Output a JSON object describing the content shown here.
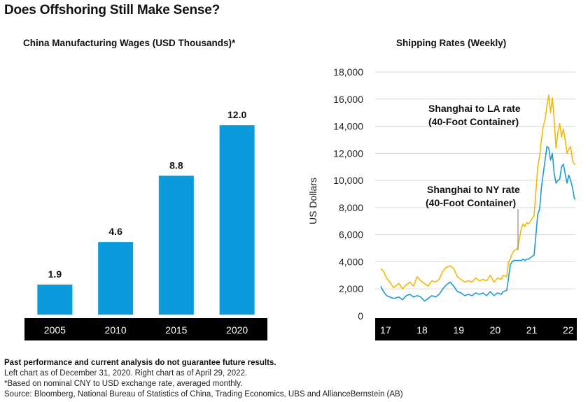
{
  "title": "Does Offshoring Still Make Sense?",
  "colors": {
    "bar": "#0b9bdc",
    "la": "#f5b800",
    "ny": "#1a9bd7",
    "axis_band": "#000000"
  },
  "chart_data": [
    {
      "type": "bar",
      "title": "China Manufacturing Wages (USD Thousands)*",
      "categories": [
        "2005",
        "2010",
        "2015",
        "2020"
      ],
      "values": [
        1.9,
        4.6,
        8.8,
        12.0
      ],
      "value_labels": [
        "1.9",
        "4.6",
        "8.8",
        "12.0"
      ],
      "ylim": [
        0,
        13.6
      ],
      "grid": false
    },
    {
      "type": "line",
      "title": "Shipping Rates (Weekly)",
      "ylabel": "US Dollars",
      "xlim": [
        2016.85,
        2022.33
      ],
      "ylim": [
        0,
        18000
      ],
      "x_ticks": [
        2017,
        2018,
        2019,
        2020,
        2021,
        2022
      ],
      "x_tick_labels": [
        "17",
        "18",
        "19",
        "20",
        "21",
        "22"
      ],
      "y_ticks": [
        0,
        2000,
        4000,
        6000,
        8000,
        10000,
        12000,
        14000,
        16000,
        18000
      ],
      "y_tick_labels": [
        "0",
        "2,000",
        "4,000",
        "6,000",
        "8,000",
        "10,000",
        "12,000",
        "14,000",
        "16,000",
        "18,000"
      ],
      "grid": true,
      "series": [
        {
          "name": "Shanghai to LA rate (40-Foot Container)",
          "label_lines": [
            "Shanghai to LA rate",
            "(40-Foot Container)"
          ],
          "x": [
            2017.0,
            2017.08,
            2017.16,
            2017.25,
            2017.35,
            2017.5,
            2017.6,
            2017.7,
            2017.8,
            2017.9,
            2018.0,
            2018.1,
            2018.2,
            2018.3,
            2018.4,
            2018.5,
            2018.6,
            2018.7,
            2018.8,
            2018.9,
            2019.0,
            2019.1,
            2019.2,
            2019.3,
            2019.4,
            2019.5,
            2019.6,
            2019.7,
            2019.8,
            2019.9,
            2020.0,
            2020.1,
            2020.2,
            2020.3,
            2020.35,
            2020.45,
            2020.5,
            2020.55,
            2020.6,
            2020.65,
            2020.7,
            2020.75,
            2020.85,
            2020.9,
            2020.95,
            2021.0,
            2021.05,
            2021.1,
            2021.2,
            2021.3,
            2021.35,
            2021.4,
            2021.45,
            2021.5,
            2021.55,
            2021.6,
            2021.65,
            2021.7,
            2021.75,
            2021.8,
            2021.85,
            2021.9,
            2021.95,
            2022.0,
            2022.05,
            2022.1,
            2022.15,
            2022.2,
            2022.25,
            2022.3,
            2022.33
          ],
          "y": [
            3500,
            3300,
            2800,
            2500,
            2100,
            2400,
            2000,
            2300,
            2500,
            2200,
            2900,
            2600,
            2400,
            2200,
            2600,
            2500,
            2700,
            3300,
            3600,
            3700,
            3500,
            2900,
            2700,
            2500,
            2600,
            2500,
            2800,
            2600,
            2700,
            2600,
            3000,
            2500,
            2800,
            2700,
            3000,
            2900,
            4000,
            4200,
            4600,
            4800,
            4900,
            5000,
            6500,
            6800,
            6600,
            6900,
            6800,
            7000,
            7400,
            11000,
            11800,
            13000,
            14000,
            14500,
            15500,
            16300,
            15000,
            16100,
            14500,
            12400,
            13500,
            14200,
            13200,
            13800,
            13000,
            12000,
            12300,
            12500,
            11500,
            11200,
            11200
          ]
        },
        {
          "name": "Shanghai to NY rate (40-Foot Container)",
          "label_lines": [
            "Shanghai to NY rate",
            "(40-Foot Container)"
          ],
          "x": [
            2017.0,
            2017.08,
            2017.16,
            2017.25,
            2017.35,
            2017.5,
            2017.6,
            2017.7,
            2017.8,
            2017.9,
            2018.0,
            2018.1,
            2018.2,
            2018.3,
            2018.4,
            2018.5,
            2018.6,
            2018.7,
            2018.8,
            2018.9,
            2019.0,
            2019.1,
            2019.2,
            2019.3,
            2019.4,
            2019.5,
            2019.6,
            2019.7,
            2019.8,
            2019.9,
            2020.0,
            2020.1,
            2020.2,
            2020.3,
            2020.35,
            2020.45,
            2020.5,
            2020.55,
            2020.6,
            2020.65,
            2020.7,
            2020.75,
            2020.85,
            2020.9,
            2020.95,
            2021.0,
            2021.05,
            2021.1,
            2021.2,
            2021.3,
            2021.35,
            2021.4,
            2021.45,
            2021.5,
            2021.55,
            2021.6,
            2021.65,
            2021.7,
            2021.75,
            2021.8,
            2021.85,
            2021.9,
            2021.95,
            2022.0,
            2022.05,
            2022.1,
            2022.15,
            2022.2,
            2022.25,
            2022.3,
            2022.33
          ],
          "y": [
            2200,
            1800,
            1500,
            1400,
            1300,
            1400,
            1200,
            1500,
            1600,
            1400,
            1500,
            1400,
            1100,
            1300,
            1500,
            1400,
            1600,
            2000,
            2300,
            2500,
            2200,
            1800,
            1700,
            1500,
            1600,
            1500,
            1700,
            1600,
            1700,
            1500,
            1800,
            1500,
            1700,
            1600,
            1800,
            1900,
            2800,
            3800,
            4000,
            4100,
            4100,
            4100,
            4100,
            4200,
            4100,
            4200,
            4200,
            4300,
            4500,
            7500,
            7900,
            9500,
            10500,
            11500,
            12500,
            12400,
            11500,
            12000,
            10500,
            9800,
            10000,
            10100,
            11000,
            11200,
            10500,
            9800,
            10400,
            10000,
            9500,
            8700,
            8600
          ]
        }
      ]
    }
  ],
  "footer": {
    "disclaimer": "Past performance and current analysis do not guarantee future results.",
    "dates": "Left chart as of December 31, 2020. Right chart as of April 29, 2022.",
    "note": "*Based on nominal CNY to USD exchange rate, averaged monthly.",
    "source": "Source: Bloomberg, National Bureau of Statistics of China, Trading Economics, UBS and AllianceBernstein (AB)"
  }
}
